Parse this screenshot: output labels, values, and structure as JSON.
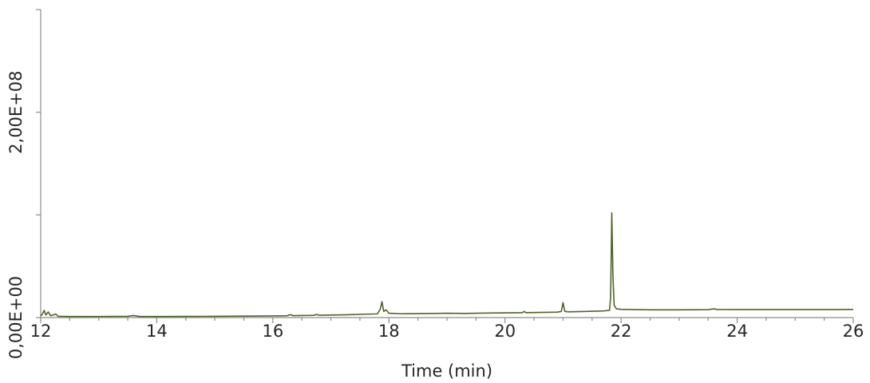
{
  "chart_data": {
    "type": "line",
    "xlabel": "Time (min)",
    "ylabel": "",
    "xlim": [
      12,
      26
    ],
    "ylim": [
      0,
      300000000
    ],
    "x_ticks": [
      12,
      14,
      16,
      18,
      20,
      22,
      24,
      26
    ],
    "x_tick_labels": [
      "12",
      "14",
      "16",
      "18",
      "20",
      "22",
      "24",
      "26"
    ],
    "x_minor_step": 0.5,
    "y_ticks": [
      0,
      100000000,
      200000000,
      300000000
    ],
    "y_tick_labels": [
      {
        "value": 0,
        "label": "0,00E+00"
      },
      {
        "value": 200000000,
        "label": "2,00E+08"
      }
    ],
    "grid": false,
    "series": [
      {
        "color": "#4f6228",
        "points": [
          [
            12.0,
            1500000
          ],
          [
            12.03,
            3500000
          ],
          [
            12.06,
            7000000
          ],
          [
            12.09,
            2500000
          ],
          [
            12.13,
            5500000
          ],
          [
            12.17,
            1800000
          ],
          [
            12.22,
            2500000
          ],
          [
            12.26,
            3500000
          ],
          [
            12.3,
            1200000
          ],
          [
            12.5,
            1000000
          ],
          [
            12.8,
            1000000
          ],
          [
            13.2,
            1100000
          ],
          [
            13.5,
            1200000
          ],
          [
            13.6,
            2000000
          ],
          [
            13.7,
            1000000
          ],
          [
            14.0,
            1000000
          ],
          [
            14.5,
            1100000
          ],
          [
            15.0,
            1200000
          ],
          [
            15.5,
            1400000
          ],
          [
            16.0,
            1600000
          ],
          [
            16.25,
            1800000
          ],
          [
            16.3,
            2800000
          ],
          [
            16.35,
            1900000
          ],
          [
            16.5,
            2000000
          ],
          [
            16.7,
            2200000
          ],
          [
            16.75,
            3000000
          ],
          [
            16.8,
            2300000
          ],
          [
            17.0,
            2500000
          ],
          [
            17.3,
            2800000
          ],
          [
            17.6,
            3300000
          ],
          [
            17.8,
            3600000
          ],
          [
            17.85,
            8000000
          ],
          [
            17.88,
            15500000
          ],
          [
            17.91,
            6000000
          ],
          [
            17.95,
            7500000
          ],
          [
            18.0,
            4200000
          ],
          [
            18.2,
            3700000
          ],
          [
            18.5,
            3800000
          ],
          [
            18.8,
            4000000
          ],
          [
            19.0,
            4200000
          ],
          [
            19.3,
            4000000
          ],
          [
            19.6,
            4300000
          ],
          [
            19.9,
            4500000
          ],
          [
            20.2,
            4700000
          ],
          [
            20.3,
            4800000
          ],
          [
            20.33,
            6000000
          ],
          [
            20.36,
            4800000
          ],
          [
            20.6,
            5000000
          ],
          [
            20.9,
            5300000
          ],
          [
            20.97,
            6000000
          ],
          [
            21.0,
            14500000
          ],
          [
            21.03,
            6000000
          ],
          [
            21.1,
            5600000
          ],
          [
            21.4,
            6000000
          ],
          [
            21.7,
            6500000
          ],
          [
            21.8,
            7000000
          ],
          [
            21.82,
            20000000
          ],
          [
            21.84,
            102000000
          ],
          [
            21.86,
            40000000
          ],
          [
            21.88,
            12000000
          ],
          [
            21.92,
            8500000
          ],
          [
            22.0,
            8000000
          ],
          [
            22.2,
            7800000
          ],
          [
            22.5,
            7500000
          ],
          [
            23.0,
            7500000
          ],
          [
            23.5,
            7700000
          ],
          [
            23.6,
            8500000
          ],
          [
            23.65,
            7900000
          ],
          [
            24.0,
            7800000
          ],
          [
            24.5,
            7800000
          ],
          [
            25.0,
            7800000
          ],
          [
            25.5,
            7800000
          ],
          [
            26.0,
            7900000
          ]
        ]
      }
    ]
  }
}
